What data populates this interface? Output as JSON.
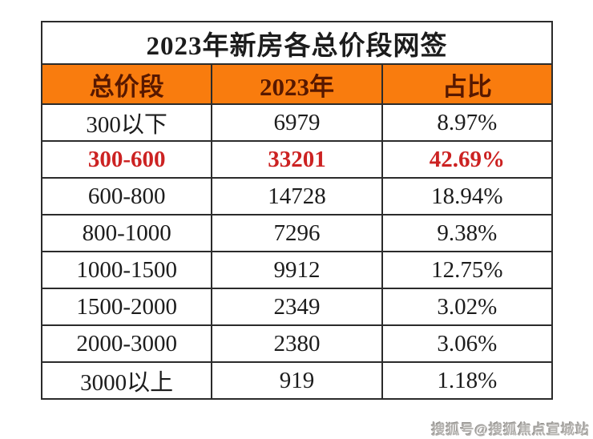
{
  "page": {
    "title": "2023年新房各总价段网签",
    "watermark": "搜狐号@搜狐焦点宣城站"
  },
  "colors": {
    "header_bg": "#f97c0e",
    "header_text": "#571800",
    "highlight_text": "#cc2222",
    "body_text": "#1c1c1c",
    "border": "#2b2b2b"
  },
  "table": {
    "header": {
      "col1": "总价段",
      "col2": "2023年",
      "col3": "占比"
    },
    "rows": [
      {
        "range": "300以下",
        "count": "6979",
        "share": "8.97%"
      },
      {
        "range": "300-600",
        "count": "33201",
        "share": "42.69%"
      },
      {
        "range": "600-800",
        "count": "14728",
        "share": "18.94%"
      },
      {
        "range": "800-1000",
        "count": "7296",
        "share": "9.38%"
      },
      {
        "range": "1000-1500",
        "count": "9912",
        "share": "12.75%"
      },
      {
        "range": "1500-2000",
        "count": "2349",
        "share": "3.02%"
      },
      {
        "range": "2000-3000",
        "count": "2380",
        "share": "3.06%"
      },
      {
        "range": "3000以上",
        "count": "919",
        "share": "1.18%"
      }
    ]
  },
  "chart_data": {
    "type": "table",
    "title": "2023年新房各总价段网签",
    "columns": [
      "总价段",
      "2023年",
      "占比"
    ],
    "rows": [
      [
        "300以下",
        6979,
        "8.97%"
      ],
      [
        "300-600",
        33201,
        "42.69%"
      ],
      [
        "600-800",
        14728,
        "18.94%"
      ],
      [
        "800-1000",
        7296,
        "9.38%"
      ],
      [
        "1000-1500",
        9912,
        "12.75%"
      ],
      [
        "1500-2000",
        2349,
        "3.02%"
      ],
      [
        "2000-3000",
        2380,
        "3.06%"
      ],
      [
        "3000以上",
        919,
        "1.18%"
      ]
    ],
    "highlighted_row": "300-600",
    "layout_hints": {
      "header_background": "#f97c0e",
      "highlight_color": "#cc2222",
      "grid": true
    }
  }
}
